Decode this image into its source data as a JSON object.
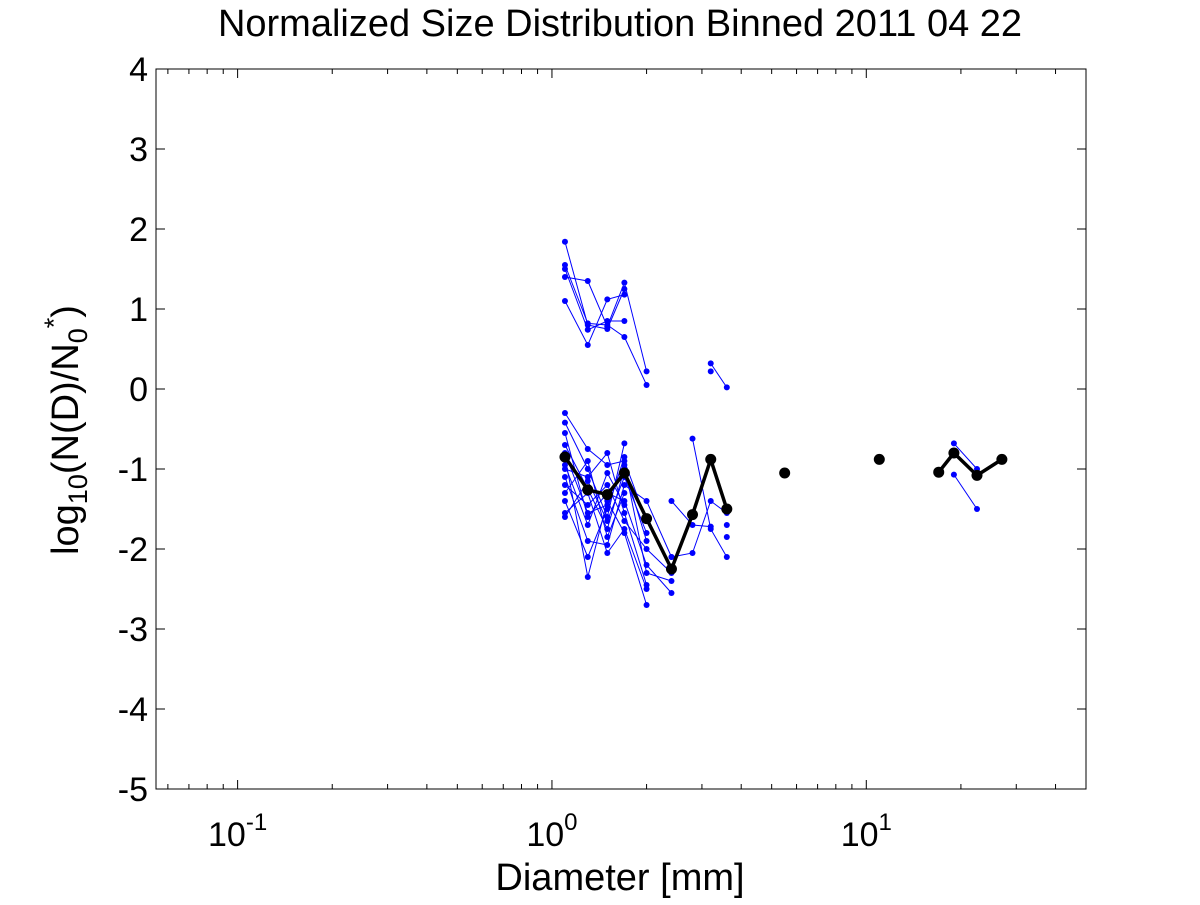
{
  "chart_data": {
    "type": "scatter",
    "title": "Normalized Size Distribution Binned 2011 04 22",
    "xlabel": "Diameter [mm]",
    "ylabel": {
      "base": "log",
      "base_sub": "10",
      "main": "(N(D)/N",
      "sub": "0",
      "sup": "*",
      "close": ")"
    },
    "x_scale": "log",
    "xlim": [
      0.055,
      50
    ],
    "ylim": [
      -5,
      4
    ],
    "grid": false,
    "x_tick_labels": [
      {
        "value": 0.1,
        "base": "10",
        "exp": "-1"
      },
      {
        "value": 1,
        "base": "10",
        "exp": "0"
      },
      {
        "value": 10,
        "base": "10",
        "exp": "1"
      }
    ],
    "y_ticks": [
      4,
      3,
      2,
      1,
      0,
      -1,
      -2,
      -3,
      -4,
      -5
    ],
    "y_tick_labels": [
      "4",
      "3",
      "2",
      "1",
      "0",
      "-1",
      "-2",
      "-3",
      "-4",
      "-5"
    ],
    "colors": {
      "individual": "#0000ff",
      "mean": "#000000"
    },
    "individual_series": [
      [
        [
          1.1,
          1.55
        ],
        [
          1.3,
          0.82
        ],
        [
          1.5,
          0.8
        ],
        [
          1.7,
          0.65
        ],
        [
          2.0,
          0.05
        ]
      ],
      [
        [
          1.1,
          1.5
        ],
        [
          1.3,
          0.74
        ],
        [
          1.5,
          0.85
        ],
        [
          1.7,
          0.85
        ]
      ],
      [
        [
          1.1,
          1.4
        ],
        [
          1.3,
          1.35
        ],
        [
          1.5,
          0.78
        ],
        [
          1.7,
          1.33
        ],
        [
          2.0,
          0.22
        ]
      ],
      [
        [
          1.1,
          1.1
        ],
        [
          1.3,
          0.55
        ],
        [
          1.5,
          1.12
        ],
        [
          1.7,
          1.18
        ]
      ],
      [
        [
          1.1,
          1.84
        ],
        [
          1.3,
          0.8
        ],
        [
          1.5,
          0.75
        ],
        [
          1.7,
          1.25
        ]
      ],
      [
        [
          1.1,
          -0.3
        ],
        [
          1.3,
          -0.75
        ],
        [
          1.5,
          -0.95
        ],
        [
          1.7,
          -0.9
        ],
        [
          2.0,
          -1.65
        ]
      ],
      [
        [
          1.1,
          -0.42
        ],
        [
          1.3,
          -1.0
        ],
        [
          1.5,
          -1.6
        ],
        [
          1.7,
          -0.68
        ]
      ],
      [
        [
          1.1,
          -0.55
        ],
        [
          1.3,
          -1.6
        ],
        [
          1.5,
          -1.3
        ],
        [
          1.7,
          -1.4
        ],
        [
          2.0,
          -2.2
        ],
        [
          2.4,
          -2.55
        ]
      ],
      [
        [
          1.1,
          -0.7
        ],
        [
          1.3,
          -1.25
        ],
        [
          1.5,
          -1.75
        ],
        [
          1.7,
          -1.0
        ],
        [
          2.0,
          -1.9
        ]
      ],
      [
        [
          1.1,
          -0.85
        ],
        [
          1.3,
          -2.35
        ],
        [
          1.5,
          -1.4
        ],
        [
          1.7,
          -1.8
        ],
        [
          2.0,
          -2.7
        ]
      ],
      [
        [
          1.1,
          -1.0
        ],
        [
          1.3,
          -1.1
        ],
        [
          1.5,
          -0.8
        ],
        [
          1.7,
          -1.55
        ],
        [
          2.0,
          -2.45
        ]
      ],
      [
        [
          1.1,
          -1.1
        ],
        [
          1.3,
          -1.9
        ],
        [
          1.5,
          -1.95
        ],
        [
          1.7,
          -1.2
        ],
        [
          2.0,
          -1.4
        ],
        [
          2.4,
          -2.1
        ]
      ],
      [
        [
          1.1,
          -1.2
        ],
        [
          1.3,
          -1.45
        ],
        [
          1.5,
          -1.2
        ],
        [
          1.7,
          -1.65
        ],
        [
          2.0,
          -2.0
        ],
        [
          2.4,
          -2.3
        ]
      ],
      [
        [
          1.1,
          -1.3
        ],
        [
          1.3,
          -0.9
        ],
        [
          1.5,
          -1.85
        ],
        [
          1.7,
          -1.3
        ]
      ],
      [
        [
          1.1,
          -1.4
        ],
        [
          1.3,
          -2.1
        ],
        [
          1.5,
          -1.5
        ],
        [
          1.7,
          -0.85
        ]
      ],
      [
        [
          1.1,
          -1.55
        ],
        [
          1.3,
          -1.3
        ],
        [
          1.5,
          -2.05
        ],
        [
          1.7,
          -1.75
        ],
        [
          2.0,
          -2.5
        ]
      ],
      [
        [
          1.1,
          -0.95
        ],
        [
          1.3,
          -1.7
        ],
        [
          1.5,
          -1.05
        ],
        [
          1.7,
          -1.45
        ]
      ],
      [
        [
          1.1,
          -1.6
        ],
        [
          1.3,
          -1.15
        ],
        [
          1.5,
          -1.65
        ],
        [
          1.7,
          -1.1
        ],
        [
          2.0,
          -1.8
        ]
      ],
      [
        [
          1.1,
          -0.8
        ],
        [
          1.3,
          -1.55
        ],
        [
          1.5,
          -1.45
        ],
        [
          1.7,
          -0.95
        ],
        [
          2.0,
          -2.3
        ],
        [
          2.4,
          -2.4
        ]
      ],
      [
        [
          2.4,
          -1.4
        ],
        [
          2.8,
          -1.7
        ],
        [
          3.2,
          -1.72
        ]
      ],
      [
        [
          2.4,
          -2.1
        ],
        [
          2.8,
          -2.05
        ],
        [
          3.2,
          -1.4
        ],
        [
          3.6,
          -1.55
        ]
      ],
      [
        [
          2.8,
          -0.62
        ],
        [
          3.2,
          -1.75
        ],
        [
          3.6,
          -2.1
        ]
      ],
      [
        [
          3.2,
          0.32
        ],
        [
          3.6,
          0.02
        ]
      ],
      [
        [
          3.2,
          0.22
        ]
      ],
      [
        [
          3.6,
          -1.7
        ]
      ],
      [
        [
          3.6,
          -1.85
        ]
      ],
      [
        [
          19,
          -0.68
        ],
        [
          22.5,
          -1.0
        ]
      ],
      [
        [
          19,
          -1.07
        ],
        [
          22.5,
          -1.5
        ]
      ]
    ],
    "mean_series": [
      [
        [
          1.1,
          -0.85
        ],
        [
          1.3,
          -1.26
        ],
        [
          1.5,
          -1.32
        ],
        [
          1.7,
          -1.05
        ],
        [
          2.0,
          -1.62
        ],
        [
          2.4,
          -2.25
        ],
        [
          2.8,
          -1.57
        ],
        [
          3.2,
          -0.88
        ],
        [
          3.6,
          -1.5
        ]
      ],
      [
        [
          5.5,
          -1.05
        ]
      ],
      [
        [
          11,
          -0.88
        ]
      ],
      [
        [
          17,
          -1.04
        ],
        [
          19,
          -0.8
        ],
        [
          22.5,
          -1.08
        ],
        [
          27,
          -0.88
        ]
      ]
    ]
  }
}
